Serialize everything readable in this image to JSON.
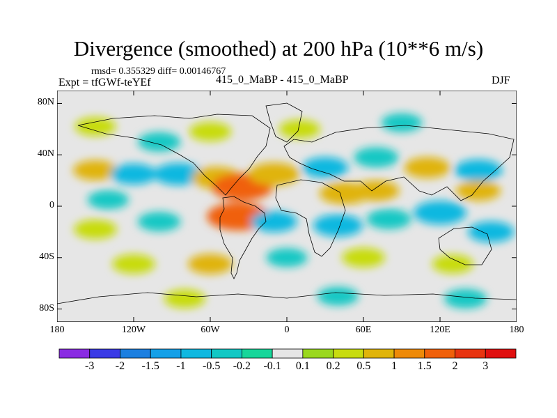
{
  "chart_data": {
    "type": "heatmap",
    "title": "Divergence (smoothed) at 200 hPa (10**6 m/s)",
    "stats": "rmsd= 0.355329  diff= 0.00146767",
    "experiment": "Expt = tfGWf-teYEf",
    "subtitle": "415_0_MaBP - 415_0_MaBP",
    "season": "DJF",
    "xlabel": "",
    "ylabel": "",
    "xlim": [
      -180,
      180
    ],
    "ylim": [
      -90,
      90
    ],
    "x_ticks": [
      {
        "value": -180,
        "label": "180"
      },
      {
        "value": -120,
        "label": "120W"
      },
      {
        "value": -60,
        "label": "60W"
      },
      {
        "value": 0,
        "label": "0"
      },
      {
        "value": 60,
        "label": "60E"
      },
      {
        "value": 120,
        "label": "120E"
      },
      {
        "value": 180,
        "label": "180"
      }
    ],
    "y_ticks": [
      {
        "value": 80,
        "label": "80N"
      },
      {
        "value": 40,
        "label": "40N"
      },
      {
        "value": 0,
        "label": "0"
      },
      {
        "value": -40,
        "label": "40S"
      },
      {
        "value": -80,
        "label": "80S"
      }
    ],
    "contour_levels": [
      "-3",
      "-2",
      "-1.5",
      "-1",
      "-0.5",
      "-0.2",
      "-0.1",
      "0.1",
      "0.2",
      "0.5",
      "1",
      "1.5",
      "2",
      "3"
    ],
    "colorbar_colors": [
      "#8a2be2",
      "#3a3ae6",
      "#1c7fe0",
      "#14a0e8",
      "#10b8e0",
      "#12c8c4",
      "#18d69a",
      "#e6e6e6",
      "#9ad81e",
      "#c8dc10",
      "#e0b40a",
      "#ee8a08",
      "#f0600a",
      "#e83410",
      "#e01010"
    ],
    "field": [
      {
        "lon": -150,
        "lat": 62,
        "value": 0.3
      },
      {
        "lon": -100,
        "lat": 50,
        "value": -0.4
      },
      {
        "lon": -60,
        "lat": 58,
        "value": 0.35
      },
      {
        "lon": 10,
        "lat": 60,
        "value": 0.3
      },
      {
        "lon": 90,
        "lat": 65,
        "value": -0.3
      },
      {
        "lon": -150,
        "lat": 28,
        "value": 0.5
      },
      {
        "lon": -120,
        "lat": 25,
        "value": -0.6
      },
      {
        "lon": -85,
        "lat": 25,
        "value": -0.8
      },
      {
        "lon": -55,
        "lat": 22,
        "value": 0.8
      },
      {
        "lon": -35,
        "lat": 15,
        "value": 1.5
      },
      {
        "lon": -10,
        "lat": 25,
        "value": 0.9
      },
      {
        "lon": 30,
        "lat": 30,
        "value": -0.6
      },
      {
        "lon": 70,
        "lat": 38,
        "value": -0.5
      },
      {
        "lon": 110,
        "lat": 30,
        "value": 0.6
      },
      {
        "lon": 150,
        "lat": 28,
        "value": -0.7
      },
      {
        "lon": 45,
        "lat": 10,
        "value": 0.8
      },
      {
        "lon": 70,
        "lat": 12,
        "value": 0.6
      },
      {
        "lon": 150,
        "lat": 12,
        "value": 0.5
      },
      {
        "lon": -140,
        "lat": 5,
        "value": -0.3
      },
      {
        "lon": -150,
        "lat": -18,
        "value": 0.4
      },
      {
        "lon": -100,
        "lat": -12,
        "value": -0.4
      },
      {
        "lon": -38,
        "lat": -8,
        "value": 1.6
      },
      {
        "lon": -10,
        "lat": -12,
        "value": -0.6
      },
      {
        "lon": 40,
        "lat": -15,
        "value": -0.8
      },
      {
        "lon": 80,
        "lat": -10,
        "value": -0.5
      },
      {
        "lon": 120,
        "lat": -5,
        "value": -1.0
      },
      {
        "lon": 160,
        "lat": -20,
        "value": -0.6
      },
      {
        "lon": -120,
        "lat": -45,
        "value": 0.4
      },
      {
        "lon": -60,
        "lat": -45,
        "value": 0.5
      },
      {
        "lon": 0,
        "lat": -40,
        "value": -0.3
      },
      {
        "lon": 60,
        "lat": -40,
        "value": 0.4
      },
      {
        "lon": 130,
        "lat": -45,
        "value": 0.3
      },
      {
        "lon": -80,
        "lat": -72,
        "value": 0.3
      },
      {
        "lon": 40,
        "lat": -70,
        "value": -0.3
      },
      {
        "lon": 140,
        "lat": -72,
        "value": -0.4
      }
    ]
  }
}
